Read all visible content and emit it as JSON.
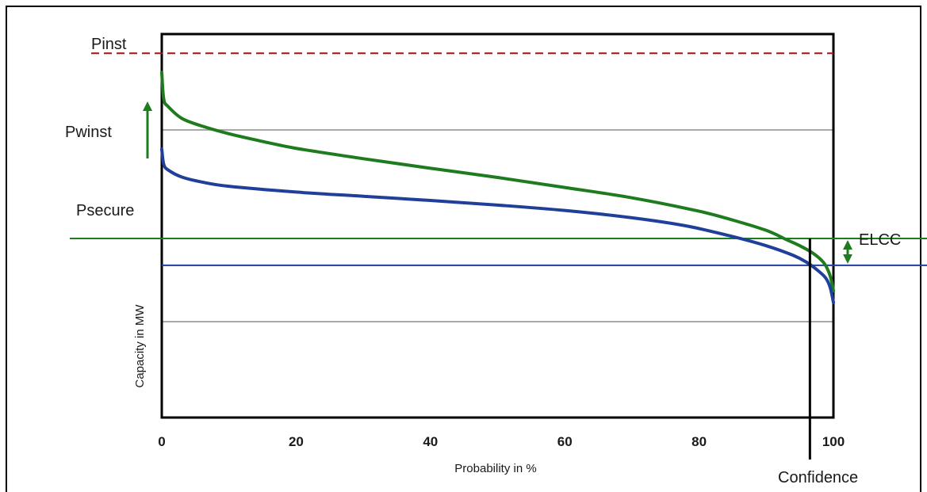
{
  "chart_data": {
    "type": "line",
    "xlabel": "Probability in %",
    "ylabel": "Capacity in MW",
    "xlim": [
      0,
      100
    ],
    "ylim": [
      0,
      100
    ],
    "x_ticks": [
      "0",
      "20",
      "40",
      "60",
      "80",
      "100"
    ],
    "grid": "horizontal",
    "series": [
      {
        "color": "#1e7b1e",
        "points": [
          [
            0,
            90
          ],
          [
            0.3,
            83
          ],
          [
            1,
            81
          ],
          [
            3,
            78
          ],
          [
            6,
            76
          ],
          [
            10,
            74
          ],
          [
            15,
            72
          ],
          [
            20,
            70.2
          ],
          [
            30,
            67.5
          ],
          [
            40,
            65
          ],
          [
            50,
            62.6
          ],
          [
            60,
            60
          ],
          [
            70,
            57.3
          ],
          [
            80,
            53.8
          ],
          [
            85,
            51.5
          ],
          [
            90,
            48.8
          ],
          [
            93,
            46.4
          ],
          [
            95,
            44.8
          ],
          [
            97,
            42.8
          ],
          [
            98.5,
            40.5
          ],
          [
            99.3,
            38
          ],
          [
            99.8,
            35
          ],
          [
            100,
            33
          ]
        ]
      },
      {
        "color": "#1f3f9a",
        "points": [
          [
            0,
            70
          ],
          [
            0.3,
            66
          ],
          [
            1,
            64.5
          ],
          [
            3,
            62.7
          ],
          [
            6,
            61.4
          ],
          [
            10,
            60.3
          ],
          [
            20,
            58.8
          ],
          [
            30,
            57.7
          ],
          [
            40,
            56.6
          ],
          [
            50,
            55.4
          ],
          [
            60,
            54
          ],
          [
            70,
            52.1
          ],
          [
            78,
            50
          ],
          [
            85,
            47.2
          ],
          [
            90,
            44.8
          ],
          [
            94,
            42.3
          ],
          [
            96,
            40.5
          ],
          [
            97.5,
            38.6
          ],
          [
            98.8,
            36.5
          ],
          [
            99.5,
            34
          ],
          [
            100,
            30
          ]
        ]
      }
    ],
    "reference_lines": [
      {
        "label": "Pinst",
        "y": 95,
        "color": "#a31515",
        "style": "dashed"
      },
      {
        "label": "Psecure",
        "y": 46.7,
        "color": "#1e7b1e",
        "style": "solid"
      },
      {
        "label": "",
        "y": 39.7,
        "color": "#1f3f9a",
        "style": "solid"
      }
    ],
    "annotations": {
      "pwinst": "Pwinst",
      "elcc": "ELCC",
      "confidence": "Confidence"
    },
    "confidence_x": 96.5
  }
}
